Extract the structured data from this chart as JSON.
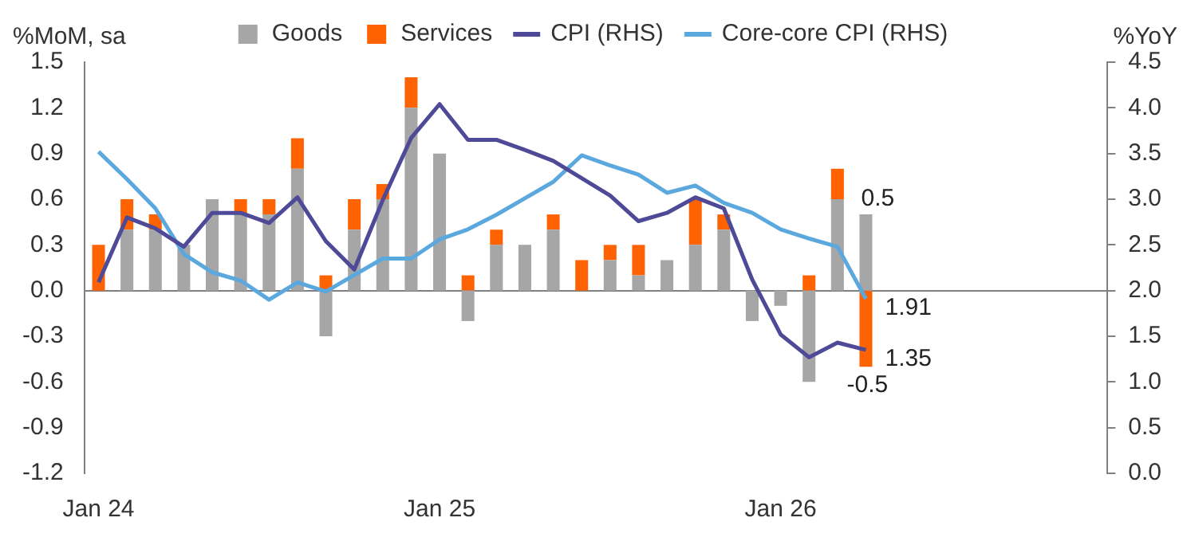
{
  "chart_data": {
    "type": "bar",
    "stacked": true,
    "ylabel": "%MoM, sa",
    "y2label": "%YoY",
    "categories": [
      "Jan 24",
      null,
      null,
      null,
      null,
      null,
      null,
      null,
      null,
      null,
      null,
      null,
      "Jan 25",
      null,
      null,
      null,
      null,
      null,
      null,
      null,
      null,
      null,
      null,
      null,
      "Jan 26",
      null,
      null,
      null,
      null,
      null,
      null,
      null,
      null,
      null,
      null,
      null
    ],
    "series": [
      {
        "name": "Goods",
        "type": "bar",
        "color": "#a6a6a6",
        "values": [
          0,
          0.4,
          0.4,
          0.3,
          0.6,
          0.5,
          0.5,
          0.8,
          -0.3,
          0.4,
          0.6,
          1.2,
          0.9,
          -0.2,
          0.3,
          0.3,
          0.4,
          0,
          0.2,
          0.1,
          0.2,
          0.3,
          0.4,
          -0.2,
          -0.1,
          -0.6,
          0.6,
          0.5,
          null,
          null,
          null,
          null,
          null,
          null,
          null,
          null
        ],
        "value_labels": [
          null,
          null,
          null,
          null,
          null,
          null,
          null,
          null,
          null,
          null,
          null,
          null,
          null,
          null,
          null,
          null,
          null,
          null,
          null,
          null,
          null,
          null,
          null,
          null,
          null,
          null,
          null,
          "0.5",
          null,
          null,
          null,
          null,
          null,
          null,
          null,
          null
        ]
      },
      {
        "name": "Services",
        "type": "bar",
        "color": "#ff6200",
        "values": [
          0.3,
          0.2,
          0.1,
          0,
          0,
          0.1,
          0.1,
          0.2,
          0.1,
          0.2,
          0.1,
          0.2,
          0,
          0.1,
          0.1,
          0,
          0.1,
          0.2,
          0.1,
          0.2,
          0,
          0.3,
          0.1,
          0,
          0,
          0.1,
          0.2,
          -0.5,
          null,
          null,
          null,
          null,
          null,
          null,
          null,
          null
        ],
        "value_labels": [
          null,
          null,
          null,
          null,
          null,
          null,
          null,
          null,
          null,
          null,
          null,
          null,
          null,
          null,
          null,
          null,
          null,
          null,
          null,
          null,
          null,
          null,
          null,
          null,
          null,
          null,
          null,
          "-0.5",
          null,
          null,
          null,
          null,
          null,
          null,
          null,
          null
        ]
      },
      {
        "name": "CPI (RHS)",
        "type": "line",
        "axis": "y2",
        "color": "#4f4a97",
        "values": [
          2.09,
          2.8,
          2.68,
          2.48,
          2.85,
          2.85,
          2.74,
          3.02,
          2.54,
          2.23,
          2.99,
          3.67,
          4.04,
          3.65,
          3.65,
          3.54,
          3.42,
          3.23,
          3.04,
          2.76,
          2.85,
          3.02,
          2.9,
          2.12,
          1.52,
          1.27,
          1.43,
          1.35,
          null,
          null,
          null,
          null,
          null,
          null,
          null,
          null
        ],
        "value_labels": [
          null,
          null,
          null,
          null,
          null,
          null,
          null,
          null,
          null,
          null,
          null,
          null,
          null,
          null,
          null,
          null,
          null,
          null,
          null,
          null,
          null,
          null,
          null,
          null,
          null,
          null,
          null,
          "1.35",
          null,
          null,
          null,
          null,
          null,
          null,
          null,
          null
        ]
      },
      {
        "name": "Core-core CPI (RHS)",
        "type": "line",
        "axis": "y2",
        "color": "#5ba8de",
        "values": [
          3.52,
          3.22,
          2.9,
          2.4,
          2.2,
          2.11,
          1.9,
          2.09,
          1.99,
          2.17,
          2.35,
          2.35,
          2.56,
          2.67,
          2.83,
          3.01,
          3.19,
          3.48,
          3.37,
          3.27,
          3.07,
          3.15,
          2.96,
          2.85,
          2.67,
          2.57,
          2.48,
          1.91,
          null,
          null,
          null,
          null,
          null,
          null,
          null,
          null
        ],
        "value_labels": [
          null,
          null,
          null,
          null,
          null,
          null,
          null,
          null,
          null,
          null,
          null,
          null,
          null,
          null,
          null,
          null,
          null,
          null,
          null,
          null,
          null,
          null,
          null,
          null,
          null,
          null,
          null,
          "1.91",
          null,
          null,
          null,
          null,
          null,
          null,
          null,
          null
        ]
      }
    ],
    "ylim": [
      -1.2,
      1.5
    ],
    "yticks": [
      -1.2,
      {
        "value": -0.9,
        "label": "-0.9"
      },
      {
        "value": -0.6,
        "label": "-0.6"
      },
      {
        "value": -0.3,
        "label": "-0.3"
      },
      {
        "value": 0,
        "label": "0.0"
      },
      0.3,
      0.6,
      0.9,
      1.2,
      1.5
    ],
    "y2lim": [
      0,
      4.5
    ],
    "y2ticks": [
      {
        "value": 0,
        "label": "0.0"
      },
      0.5,
      {
        "value": 1,
        "label": "1.0"
      },
      1.5,
      {
        "value": 2,
        "label": "2.0"
      },
      2.5,
      {
        "value": 3,
        "label": "3.0"
      },
      3.5,
      {
        "value": 4,
        "label": "4.0"
      },
      4.5
    ],
    "legend": "top",
    "marker": "none",
    "line_style": "solid"
  }
}
